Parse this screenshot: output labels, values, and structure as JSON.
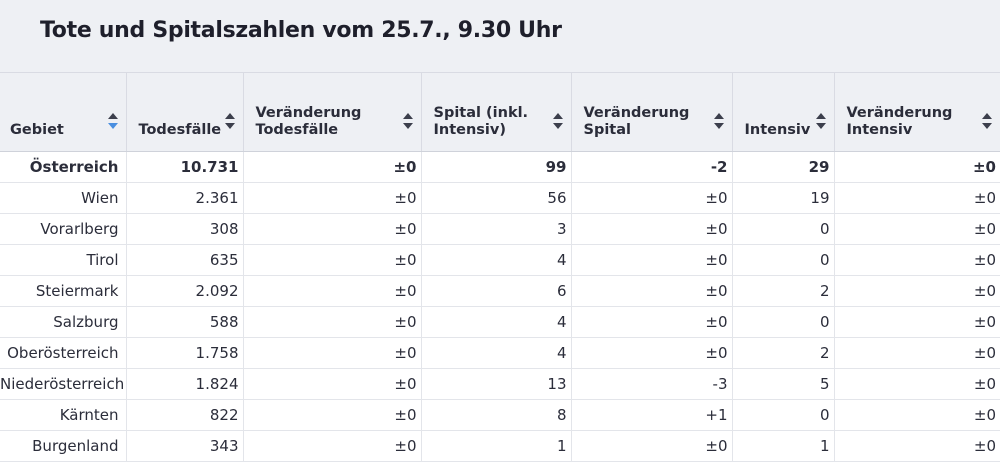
{
  "title": "Tote und Spitalszahlen vom 25.7., 9.30 Uhr",
  "columns": [
    {
      "label": "Gebiet",
      "sort_icon": "sort-active-icon"
    },
    {
      "label": "Todesfälle",
      "sort_icon": "sort-icon"
    },
    {
      "label": "Veränderung\nTodesfälle",
      "sort_icon": "sort-icon"
    },
    {
      "label": "Spital (inkl.\nIntensiv)",
      "sort_icon": "sort-icon"
    },
    {
      "label": "Veränderung\nSpital",
      "sort_icon": "sort-icon"
    },
    {
      "label": "Intensiv",
      "sort_icon": "sort-icon"
    },
    {
      "label": "Veränderung\nIntensiv",
      "sort_icon": "sort-icon"
    }
  ],
  "rows": [
    [
      "Österreich",
      "10.731",
      "±0",
      "99",
      "-2",
      "29",
      "±0"
    ],
    [
      "Wien",
      "2.361",
      "±0",
      "56",
      "±0",
      "19",
      "±0"
    ],
    [
      "Vorarlberg",
      "308",
      "±0",
      "3",
      "±0",
      "0",
      "±0"
    ],
    [
      "Tirol",
      "635",
      "±0",
      "4",
      "±0",
      "0",
      "±0"
    ],
    [
      "Steiermark",
      "2.092",
      "±0",
      "6",
      "±0",
      "2",
      "±0"
    ],
    [
      "Salzburg",
      "588",
      "±0",
      "4",
      "±0",
      "0",
      "±0"
    ],
    [
      "Oberösterreich",
      "1.758",
      "±0",
      "4",
      "±0",
      "2",
      "±0"
    ],
    [
      "Niederösterreich",
      "1.824",
      "±0",
      "13",
      "-3",
      "5",
      "±0"
    ],
    [
      "Kärnten",
      "822",
      "±0",
      "8",
      "+1",
      "0",
      "±0"
    ],
    [
      "Burgenland",
      "343",
      "±0",
      "1",
      "±0",
      "1",
      "±0"
    ]
  ],
  "colors": {
    "header_bg": "#eef0f4",
    "sort_active": "#4a8fe0",
    "text": "#2b2d3a"
  }
}
